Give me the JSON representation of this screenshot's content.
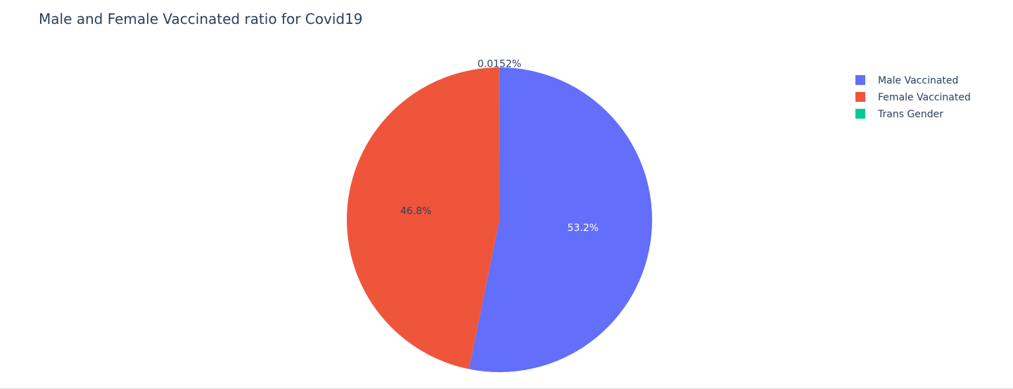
{
  "chart_data": {
    "type": "pie",
    "title": "Male and Female Vaccinated ratio for Covid19",
    "labels": [
      "Male Vaccinated",
      "Female Vaccinated",
      "Trans Gender"
    ],
    "values": [
      53.2,
      46.8,
      0.0152
    ],
    "text_labels": [
      "53.2%",
      "46.8%",
      "0.0152%"
    ],
    "colors": [
      "#636efa",
      "#EF553B",
      "#00cc96"
    ],
    "label_colors": [
      "#ffffff",
      "#2a3f5f",
      "#2a3f5f"
    ],
    "legend_position": "top-right",
    "direction": "clockwise",
    "start_angle": "top"
  }
}
